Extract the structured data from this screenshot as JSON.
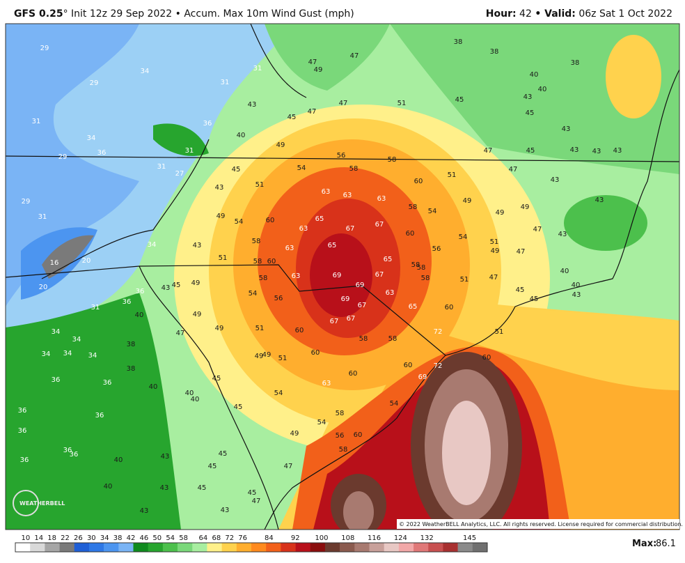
{
  "header": {
    "model": "GFS 0.25",
    "degree": "°",
    "description": " Init 12z 29 Sep 2022 • Accum. Max 10m Wind Gust (mph)",
    "hour_label": "Hour:",
    "hour": "42",
    "valid_label": "• Valid:",
    "valid": "06z Sat 1 Oct 2022"
  },
  "map": {
    "labels": [
      29,
      34,
      29,
      31,
      31,
      47,
      49,
      47,
      38,
      38,
      38,
      40,
      40,
      43,
      45,
      51,
      47,
      43,
      45,
      47,
      31,
      34,
      36,
      29,
      31,
      27,
      31,
      36,
      40,
      49,
      56,
      58,
      54,
      58,
      45,
      43,
      51,
      60,
      51,
      47,
      47,
      45,
      43,
      43,
      43,
      43,
      45,
      63,
      63,
      63,
      58,
      54,
      49,
      49,
      49,
      43,
      43,
      49,
      54,
      60,
      65,
      63,
      67,
      67,
      60,
      54,
      51,
      47,
      43,
      56,
      49,
      47,
      29,
      31,
      34,
      43,
      16,
      20,
      20,
      51,
      58,
      58,
      60,
      63,
      65,
      65,
      58,
      58,
      58,
      69,
      69,
      67,
      63,
      58,
      54,
      56,
      49,
      45,
      43,
      36,
      51,
      47,
      40,
      40,
      43,
      45,
      45,
      69,
      67,
      63,
      65,
      60,
      31,
      36,
      40,
      49,
      47,
      49,
      51,
      60,
      67,
      67,
      72,
      51,
      34,
      34,
      34,
      34,
      34,
      38,
      58,
      58,
      49,
      49,
      51,
      60,
      60,
      60,
      72,
      69,
      60,
      38,
      36,
      36,
      40,
      45,
      40,
      40,
      63,
      54,
      54,
      45,
      36,
      36,
      58,
      54,
      36,
      49,
      56,
      60,
      36,
      36,
      36,
      40,
      43,
      45,
      45,
      58,
      47,
      40,
      43,
      45,
      45,
      47,
      43,
      43
    ],
    "copyright": "© 2022 WeatherBELL Analytics, LLC. All rights reserved. License required for commercial distribution.",
    "logo": "WEATHERBELL"
  },
  "legend": {
    "ticks": [
      10,
      14,
      18,
      22,
      26,
      30,
      34,
      38,
      42,
      46,
      50,
      54,
      58,
      64,
      68,
      72,
      76,
      84,
      92,
      100,
      108,
      116,
      124,
      132,
      145
    ],
    "colors": [
      "#ffffff",
      "#d9d9d9",
      "#a6a6a6",
      "#7a7a7a",
      "#1f5fd6",
      "#2e78e6",
      "#4c95f0",
      "#7ab4f5",
      "#0f8a1e",
      "#27a52e",
      "#4cc04c",
      "#7ad87a",
      "#a8eea0",
      "#fff08a",
      "#ffd24d",
      "#ffae2e",
      "#ff8a1e",
      "#f2601a",
      "#d8321a",
      "#b8101a",
      "#8a0d0d",
      "#6b3a2e",
      "#8a5a4e",
      "#a87a70",
      "#c8a09a",
      "#e8c8c4",
      "#f2a8a8",
      "#e07878",
      "#c85050",
      "#a83030",
      "#8a8a8a",
      "#707070"
    ],
    "max_label": "Max:",
    "max": "86.1"
  }
}
